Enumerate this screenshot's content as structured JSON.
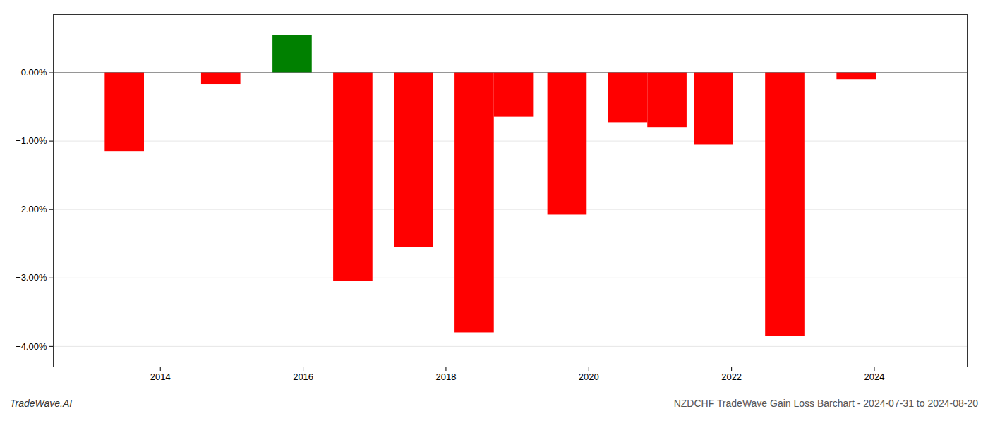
{
  "chart_data": {
    "type": "bar",
    "x": [
      2013.5,
      2014.85,
      2015.85,
      2016.7,
      2017.55,
      2018.4,
      2018.95,
      2019.7,
      2020.55,
      2021.1,
      2021.75,
      2022.75,
      2023.75
    ],
    "values": [
      -1.15,
      -0.17,
      0.55,
      -3.05,
      -2.55,
      -3.8,
      -0.65,
      -2.08,
      -0.73,
      -0.8,
      -1.05,
      -3.85,
      -0.1
    ],
    "colors": [
      "#ff0000",
      "#ff0000",
      "#008000",
      "#ff0000",
      "#ff0000",
      "#ff0000",
      "#ff0000",
      "#ff0000",
      "#ff0000",
      "#ff0000",
      "#ff0000",
      "#ff0000",
      "#ff0000"
    ],
    "xlim": [
      2012.5,
      2025.3
    ],
    "xticks": [
      2014,
      2016,
      2018,
      2020,
      2022,
      2024
    ],
    "ylim": [
      -4.3,
      0.85
    ],
    "yticks": [
      {
        "value": 0.0,
        "label": "0.00%"
      },
      {
        "value": -1.0,
        "label": "−1.00%"
      },
      {
        "value": -2.0,
        "label": "−2.00%"
      },
      {
        "value": -3.0,
        "label": "−3.00%"
      },
      {
        "value": -4.0,
        "label": "−4.00%"
      }
    ],
    "grid": true,
    "annotations": [
      "TradeWave.AI",
      "NZDCHF TradeWave Gain Loss Barchart - 2024-07-31 to 2024-08-20"
    ]
  }
}
